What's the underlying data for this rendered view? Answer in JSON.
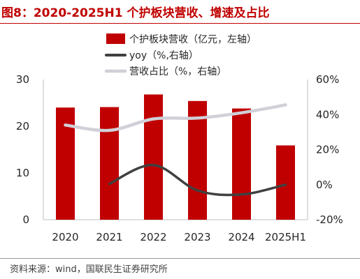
{
  "title": "图8：2020-2025H1 个护板块营收、增速及占比",
  "source": "资料来源：wind，国联民生证券研究所",
  "colors": {
    "title": "#c00000",
    "bar": "#c00000",
    "yoy_line": "#404040",
    "share_line": "#d0d0d8",
    "axis_text": "#262626"
  },
  "chart_data": {
    "type": "bar",
    "categories": [
      "2020",
      "2021",
      "2022",
      "2023",
      "2024",
      "2025H1"
    ],
    "left_axis": {
      "min": 0,
      "max": 30,
      "ticks": [
        "0",
        "10",
        "20",
        "30"
      ]
    },
    "right_axis": {
      "min": -20,
      "max": 60,
      "ticks": [
        "-20%",
        "0%",
        "20%",
        "40%",
        "60%"
      ]
    },
    "legend_position": "top-center",
    "grid": false,
    "series": [
      {
        "name": "个护板块营收（亿元，左轴）",
        "type": "bar",
        "axis": "left",
        "values": [
          24.0,
          24.1,
          26.8,
          25.4,
          23.8,
          15.9
        ]
      },
      {
        "name": "yoy（%,右轴）",
        "type": "line",
        "axis": "right",
        "smooth": true,
        "values": [
          null,
          0.5,
          11.2,
          -3.3,
          -5.6,
          0.0
        ]
      },
      {
        "name": "营收占比（%，右轴）",
        "type": "line",
        "axis": "right",
        "smooth": true,
        "values": [
          34,
          31,
          37.5,
          38,
          41,
          45.5
        ]
      }
    ]
  }
}
